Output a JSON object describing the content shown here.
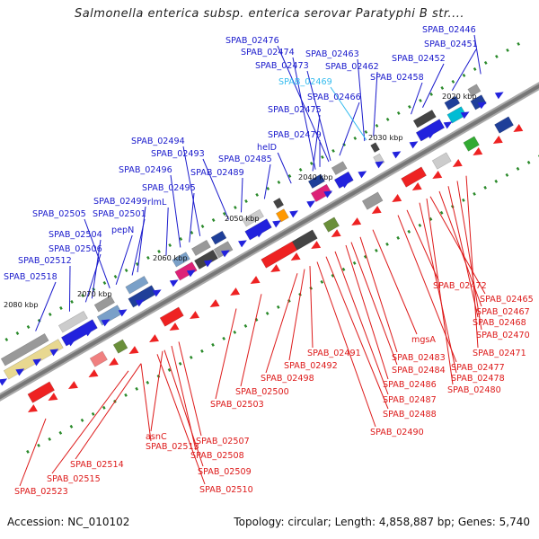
{
  "title": "Salmonella enterica subsp. enterica serovar Paratyphi B str....",
  "footer": {
    "accession": "Accession: NC_010102",
    "summary": "Topology: circular; Length: 4,858,887 bp; Genes: 5,740"
  },
  "colors": {
    "forward_label": "#1a1acc",
    "reverse_label": "#dd1a1a",
    "highlight_label": "#33bbee",
    "backbone": "#777777",
    "tick": "#2a8a2a"
  },
  "kbp_marks": [
    "2020 kbp",
    "2030 kbp",
    "2040 kbp",
    "2050 kbp",
    "2060 kbp",
    "2070 kbp",
    "2080 kbp"
  ],
  "forward_genes": [
    {
      "name": "SPAB_02446",
      "color": "blue"
    },
    {
      "name": "SPAB_02451",
      "color": "blue"
    },
    {
      "name": "SPAB_02452",
      "color": "blue"
    },
    {
      "name": "SPAB_02458",
      "color": "blue"
    },
    {
      "name": "SPAB_02462",
      "color": "blue"
    },
    {
      "name": "SPAB_02463",
      "color": "blue"
    },
    {
      "name": "SPAB_02466",
      "color": "blue"
    },
    {
      "name": "SPAB_02469",
      "color": "cyan"
    },
    {
      "name": "SPAB_02473",
      "color": "blue"
    },
    {
      "name": "SPAB_02474",
      "color": "blue"
    },
    {
      "name": "SPAB_02475",
      "color": "blue"
    },
    {
      "name": "SPAB_02476",
      "color": "blue"
    },
    {
      "name": "SPAB_02479",
      "color": "blue"
    },
    {
      "name": "helD",
      "color": "blue"
    },
    {
      "name": "SPAB_02485",
      "color": "blue"
    },
    {
      "name": "SPAB_02489",
      "color": "blue"
    },
    {
      "name": "SPAB_02493",
      "color": "blue"
    },
    {
      "name": "SPAB_02494",
      "color": "blue"
    },
    {
      "name": "SPAB_02495",
      "color": "blue"
    },
    {
      "name": "SPAB_02496",
      "color": "blue"
    },
    {
      "name": "rlmL",
      "color": "blue"
    },
    {
      "name": "SPAB_02499",
      "color": "blue"
    },
    {
      "name": "SPAB_02501",
      "color": "blue"
    },
    {
      "name": "SPAB_02505",
      "color": "blue"
    },
    {
      "name": "pepN",
      "color": "blue"
    },
    {
      "name": "SPAB_02504",
      "color": "blue"
    },
    {
      "name": "SPAB_02506",
      "color": "blue"
    },
    {
      "name": "SPAB_02512",
      "color": "blue"
    },
    {
      "name": "SPAB_02518",
      "color": "blue"
    }
  ],
  "reverse_genes": [
    {
      "name": "SPAB_02465"
    },
    {
      "name": "SPAB_02467"
    },
    {
      "name": "SPAB_02468"
    },
    {
      "name": "SPAB_02470"
    },
    {
      "name": "SPAB_02471"
    },
    {
      "name": "SPAB_02472"
    },
    {
      "name": "SPAB_02477"
    },
    {
      "name": "SPAB_02478"
    },
    {
      "name": "SPAB_02480"
    },
    {
      "name": "mgsA"
    },
    {
      "name": "SPAB_02483"
    },
    {
      "name": "SPAB_02484"
    },
    {
      "name": "SPAB_02486"
    },
    {
      "name": "SPAB_02487"
    },
    {
      "name": "SPAB_02488"
    },
    {
      "name": "SPAB_02490"
    },
    {
      "name": "SPAB_02491"
    },
    {
      "name": "SPAB_02492"
    },
    {
      "name": "SPAB_02498"
    },
    {
      "name": "SPAB_02500"
    },
    {
      "name": "SPAB_02503"
    },
    {
      "name": "SPAB_02507"
    },
    {
      "name": "SPAB_02508"
    },
    {
      "name": "SPAB_02509"
    },
    {
      "name": "SPAB_02510"
    },
    {
      "name": "asnC"
    },
    {
      "name": "SPAB_02513"
    },
    {
      "name": "SPAB_02514"
    },
    {
      "name": "SPAB_02515"
    },
    {
      "name": "SPAB_02523"
    }
  ]
}
